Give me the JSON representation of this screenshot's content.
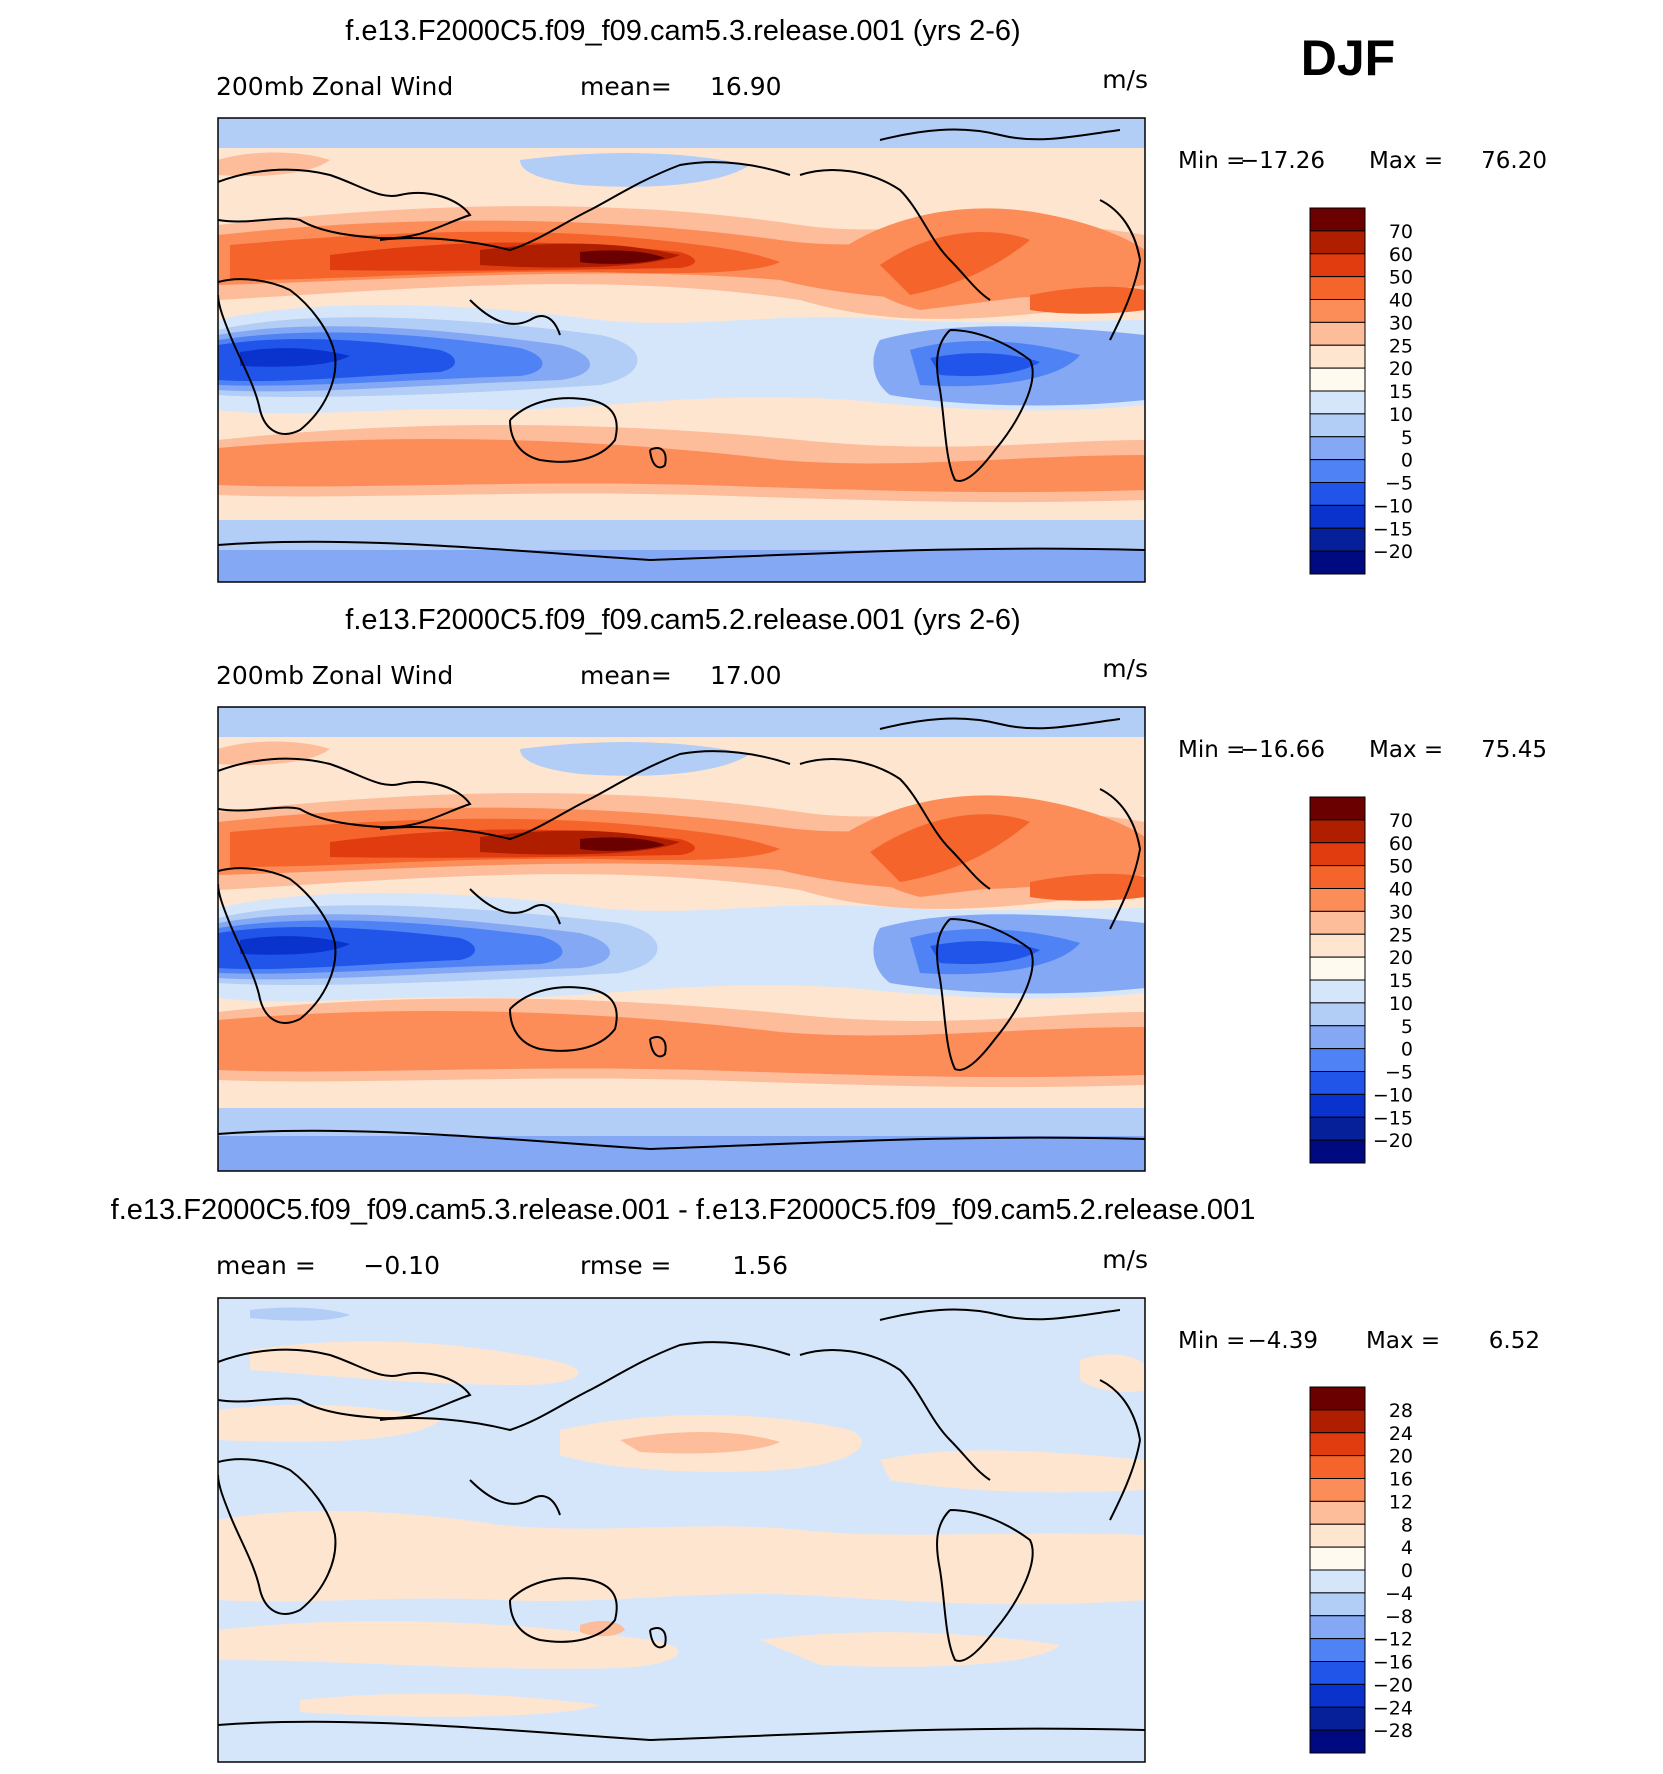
{
  "season": "DJF",
  "unit_label": "m/s",
  "panels": [
    {
      "title": "f.e13.F2000C5.f09_f09.cam5.3.release.001 (yrs 2-6)",
      "left_label": "200mb Zonal Wind",
      "stat_label": "mean=",
      "stat_value": "16.90",
      "min_label": "Min =",
      "min_value": "−17.26",
      "max_label": "Max =",
      "max_value": "76.20",
      "colorbar_ticks": [
        "70",
        "60",
        "50",
        "40",
        "30",
        "25",
        "20",
        "15",
        "10",
        "5",
        "0",
        "−5",
        "−10",
        "−15",
        "−20"
      ]
    },
    {
      "title": "f.e13.F2000C5.f09_f09.cam5.2.release.001 (yrs 2-6)",
      "left_label": "200mb Zonal Wind",
      "stat_label": "mean=",
      "stat_value": "17.00",
      "min_label": "Min =",
      "min_value": "−16.66",
      "max_label": "Max =",
      "max_value": "75.45",
      "colorbar_ticks": [
        "70",
        "60",
        "50",
        "40",
        "30",
        "25",
        "20",
        "15",
        "10",
        "5",
        "0",
        "−5",
        "−10",
        "−15",
        "−20"
      ]
    },
    {
      "title": "f.e13.F2000C5.f09_f09.cam5.3.release.001 - f.e13.F2000C5.f09_f09.cam5.2.release.001",
      "left_label": "mean =",
      "left_value": "−0.10",
      "stat_label": "rmse =",
      "stat_value": "1.56",
      "min_label": "Min =",
      "min_value": "−4.39",
      "max_label": "Max =",
      "max_value": "6.52",
      "colorbar_ticks": [
        "28",
        "24",
        "20",
        "16",
        "12",
        "8",
        "4",
        "0",
        "−4",
        "−8",
        "−12",
        "−16",
        "−20",
        "−24",
        "−28"
      ]
    }
  ],
  "colors": {
    "levels16": [
      "#6b0000",
      "#b01e00",
      "#e03c10",
      "#f5642a",
      "#fc8d59",
      "#fdbc9a",
      "#fee5d0",
      "#fffaf0",
      "#d6e6fa",
      "#b2cdf6",
      "#85a8f4",
      "#4f82f5",
      "#2155ea",
      "#0933cc",
      "#06209a",
      "#000a80"
    ]
  }
}
